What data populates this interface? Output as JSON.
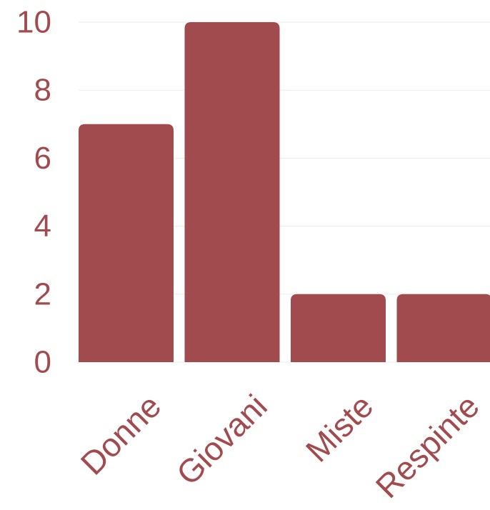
{
  "chart_data": {
    "type": "bar",
    "categories": [
      "Donne",
      "Giovani",
      "Miste",
      "Respinte"
    ],
    "values": [
      7,
      10,
      2,
      2
    ],
    "title": "",
    "xlabel": "",
    "ylabel": "",
    "ylim": [
      0,
      10
    ],
    "y_ticks": [
      "0",
      "2",
      "4",
      "6",
      "8",
      "10"
    ],
    "grid": true,
    "legend": "none",
    "colors": {
      "bar": "#a24b4e",
      "text": "#a24b4e",
      "grid": "#ebebeb"
    }
  }
}
